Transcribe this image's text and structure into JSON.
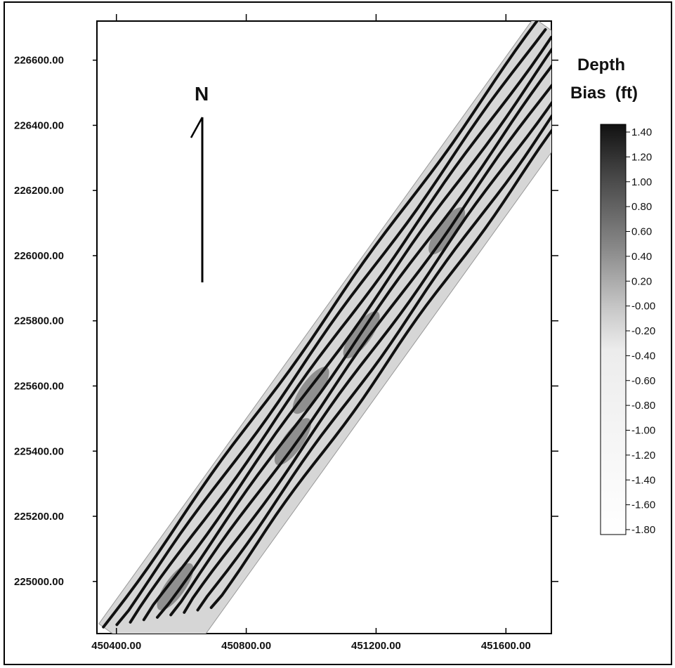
{
  "chart_data": {
    "type": "heatmap",
    "title": "",
    "xlabel": "",
    "ylabel": "",
    "x_ticks": [
      "450400.00",
      "450800.00",
      "451200.00",
      "451600.00"
    ],
    "y_ticks": [
      "225000.00",
      "225200.00",
      "225400.00",
      "225600.00",
      "225800.00",
      "226000.00",
      "226200.00",
      "226400.00",
      "226600.00"
    ],
    "xlim": [
      450340,
      451740
    ],
    "ylim": [
      224840,
      226720
    ],
    "survey_band": {
      "start": [
        450360,
        224860
      ],
      "end": [
        451700,
        226720
      ],
      "swath_lines": 9
    },
    "north_arrow": {
      "label": "N"
    },
    "colorbar": {
      "title_line1": "Depth",
      "title_line2": "Bias  (ft)",
      "ticks": [
        "1.40",
        "1.20",
        "1.00",
        "0.80",
        "0.60",
        "0.40",
        "0.20",
        "-0.00",
        "-0.20",
        "-0.40",
        "-0.60",
        "-0.80",
        "-1.00",
        "-1.20",
        "-1.40",
        "-1.60",
        "-1.80"
      ],
      "colors": [
        "#000000",
        "#ffffff"
      ]
    }
  }
}
